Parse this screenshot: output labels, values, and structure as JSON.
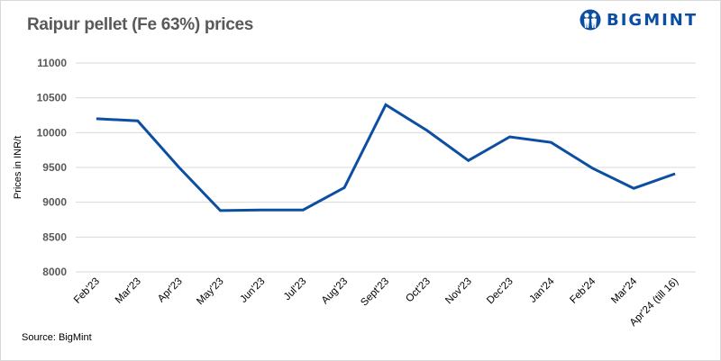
{
  "header": {
    "title": "Raipur pellet (Fe 63%) prices",
    "logo_text": "BIGMINT",
    "logo_icon": "people-circle-icon"
  },
  "footer": {
    "source": "Source: BigMint"
  },
  "colors": {
    "line": "#0b4ea2",
    "grid": "#d9d9d9",
    "title": "#595959",
    "brand": "#0b4ea2"
  },
  "chart_data": {
    "type": "line",
    "title": "Raipur pellet (Fe 63%) prices",
    "xlabel": "",
    "ylabel": "Prices in INR/t",
    "ylim": [
      8000,
      11000
    ],
    "yticks": [
      8000,
      8500,
      9000,
      9500,
      10000,
      10500,
      11000
    ],
    "grid": true,
    "legend": "none",
    "categories": [
      "Feb'23",
      "Mar'23",
      "Apr'23",
      "May'23",
      "Jun'23",
      "Jul'23",
      "Aug'23",
      "Sept'23",
      "Oct'23",
      "Nov'23",
      "Dec'23",
      "Jan'24",
      "Feb'24",
      "Mar'24",
      "Apr'24 (till 16)"
    ],
    "series": [
      {
        "name": "Raipur pellet (Fe 63%)",
        "values": [
          10200,
          10170,
          9500,
          8880,
          8890,
          8890,
          9210,
          10400,
          10030,
          9600,
          9940,
          9860,
          9490,
          9200,
          9410
        ]
      }
    ],
    "source": "Source: BigMint"
  }
}
